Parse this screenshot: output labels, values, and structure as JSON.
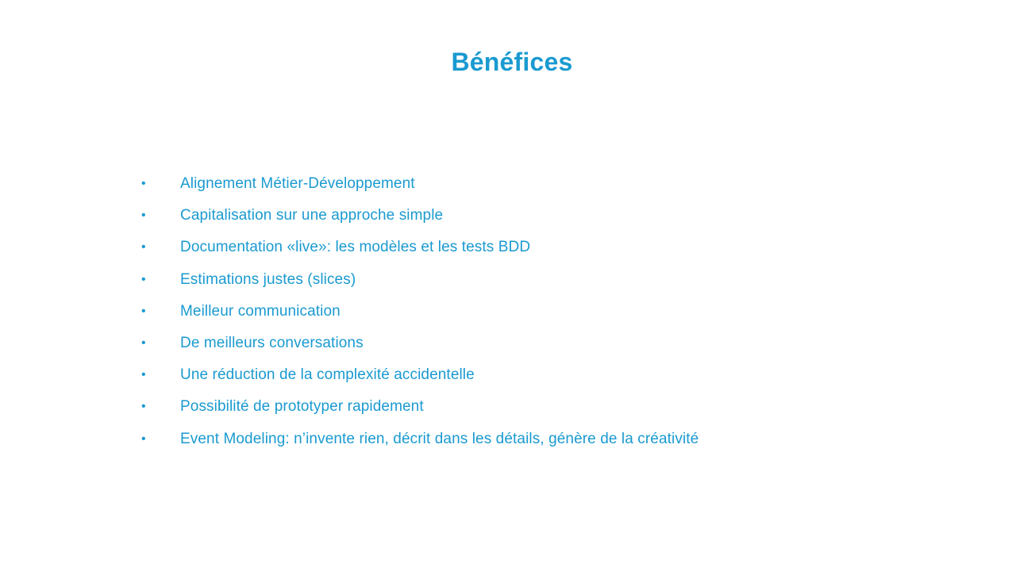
{
  "slide": {
    "title": "Bénéfices",
    "bullet_symbol": "•",
    "accent_color": "#1a9ad0",
    "bullets": [
      "Alignement Métier-Développement",
      "Capitalisation sur une approche simple",
      "Documentation «live»: les modèles et les tests BDD",
      "Estimations justes (slices)",
      "Meilleur communication",
      "De meilleurs conversations",
      "Une réduction de la complexité accidentelle",
      "Possibilité de prototyper rapidement",
      "Event Modeling: n’invente rien, décrit dans les détails, génère de la créativité"
    ]
  }
}
